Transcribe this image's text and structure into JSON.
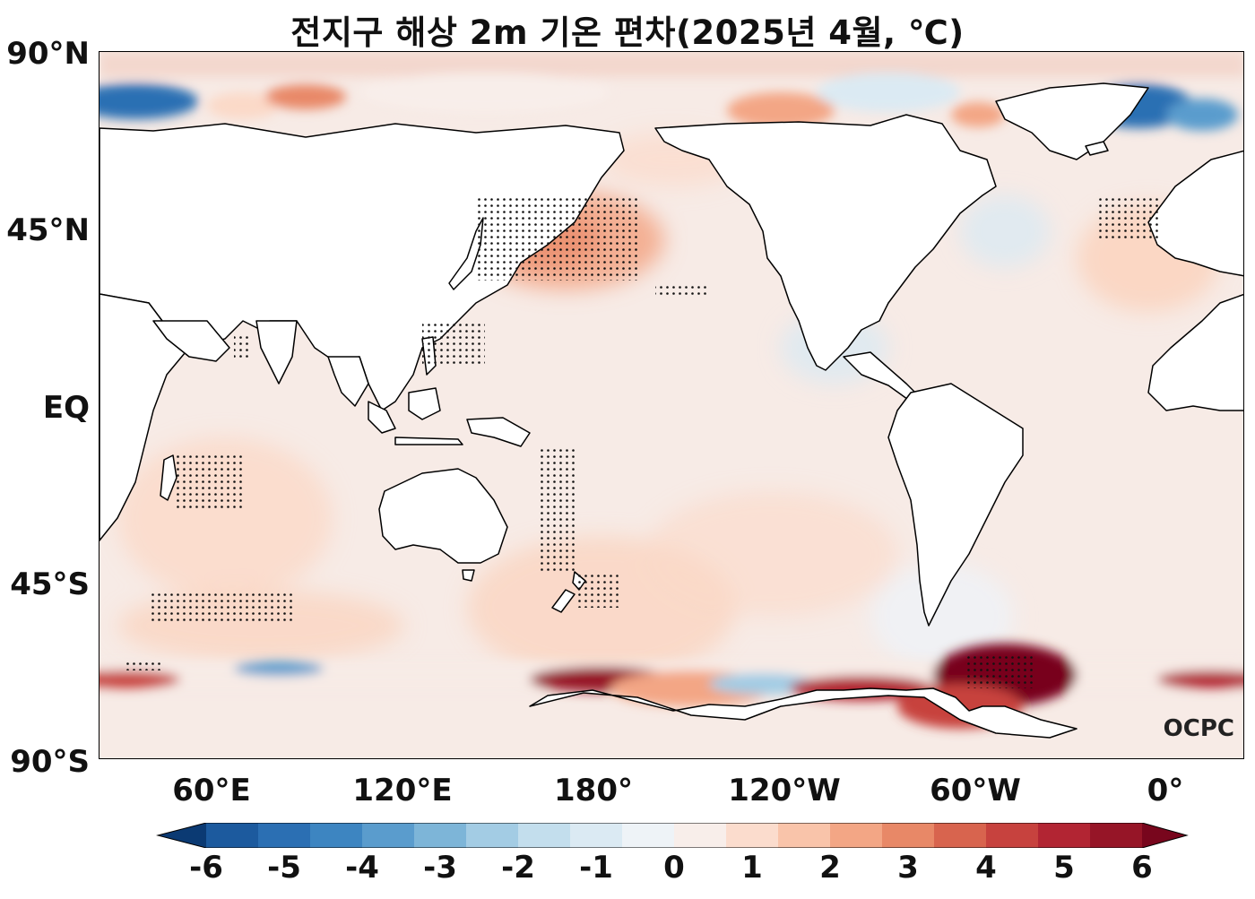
{
  "title": "전지구 해상 2m 기온 편차(2025년 4월, ℃)",
  "lat_labels": [
    "90°N",
    "45°N",
    "EQ",
    "45°S",
    "90°S"
  ],
  "lon_labels": [
    "60°E",
    "120°E",
    "180°",
    "120°W",
    "60°W",
    "0°"
  ],
  "colorbar": {
    "labels": [
      "-6",
      "-5",
      "-4",
      "-3",
      "-2",
      "-1",
      "0",
      "1",
      "2",
      "3",
      "4",
      "5",
      "6"
    ],
    "colors": [
      "#0b3a73",
      "#1c5a9e",
      "#2b6fb3",
      "#3d85c1",
      "#5a9ccd",
      "#7db5d8",
      "#a3cce4",
      "#c3deed",
      "#dbeaf3",
      "#eef3f7",
      "#f8eeea",
      "#fbdccd",
      "#f9c4aa",
      "#f3a685",
      "#e88867",
      "#d8644e",
      "#c7423e",
      "#b22533",
      "#961527",
      "#78061d"
    ]
  },
  "logo": "OCPC"
}
